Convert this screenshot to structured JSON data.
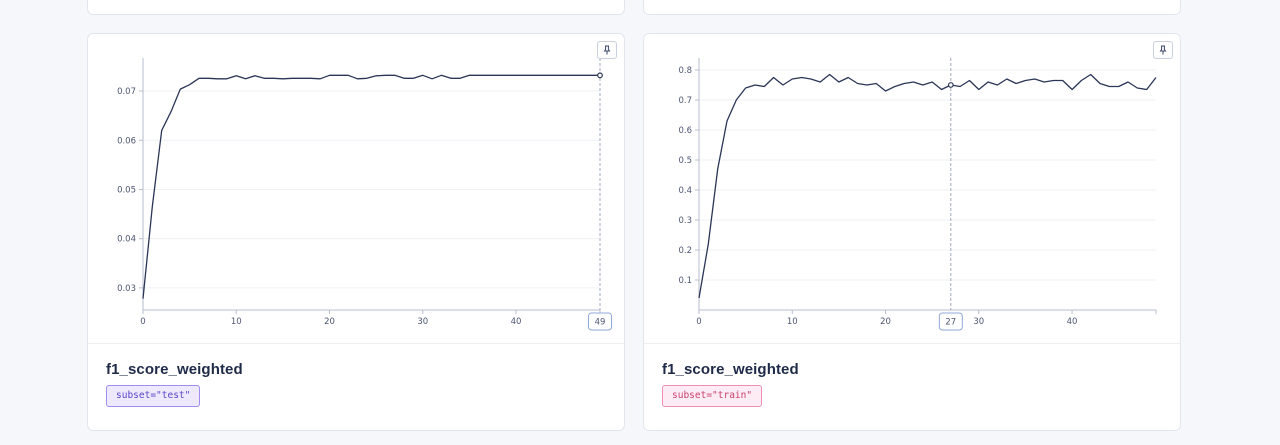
{
  "panels": [
    {
      "title": "f1_score_weighted",
      "tag": "subset=\"test\"",
      "tag_style": "test",
      "pin_icon": "pin-icon",
      "chart_data": {
        "type": "line",
        "x": [
          0,
          1,
          2,
          3,
          4,
          5,
          6,
          7,
          8,
          9,
          10,
          11,
          12,
          13,
          14,
          15,
          16,
          17,
          18,
          19,
          20,
          21,
          22,
          23,
          24,
          25,
          26,
          27,
          28,
          29,
          30,
          31,
          32,
          33,
          34,
          35,
          36,
          37,
          38,
          39,
          40,
          41,
          42,
          43,
          44,
          45,
          46,
          47,
          48,
          49
        ],
        "y": [
          0.0278,
          0.0465,
          0.062,
          0.0658,
          0.0704,
          0.0713,
          0.0726,
          0.0726,
          0.0725,
          0.0725,
          0.0731,
          0.0725,
          0.0731,
          0.0726,
          0.0726,
          0.0725,
          0.0726,
          0.0726,
          0.0726,
          0.0725,
          0.0732,
          0.0732,
          0.0732,
          0.0725,
          0.0726,
          0.0731,
          0.0732,
          0.0732,
          0.0726,
          0.0726,
          0.0732,
          0.0725,
          0.0732,
          0.0726,
          0.0726,
          0.0732,
          0.0732,
          0.0732,
          0.0732,
          0.0732,
          0.0732,
          0.0732,
          0.0732,
          0.0732,
          0.0732,
          0.0732,
          0.0732,
          0.0732,
          0.0732,
          0.0732
        ],
        "xlim": [
          0,
          49
        ],
        "ylim": [
          0.0255,
          0.0755
        ],
        "yticks": [
          "0.03",
          "0.04",
          "0.05",
          "0.06",
          "0.07"
        ],
        "ytick_values": [
          0.03,
          0.04,
          0.05,
          0.06,
          0.07
        ],
        "xticks": [
          "0",
          "10",
          "20",
          "30",
          "40"
        ],
        "xtick_values": [
          0,
          10,
          20,
          30,
          40
        ],
        "hover_x": 49,
        "hover_label": "49",
        "grid": true,
        "series_color": "#2b3556"
      }
    },
    {
      "title": "f1_score_weighted",
      "tag": "subset=\"train\"",
      "tag_style": "train",
      "pin_icon": "pin-icon",
      "chart_data": {
        "type": "line",
        "x": [
          0,
          1,
          2,
          3,
          4,
          5,
          6,
          7,
          8,
          9,
          10,
          11,
          12,
          13,
          14,
          15,
          16,
          17,
          18,
          19,
          20,
          21,
          22,
          23,
          24,
          25,
          26,
          27,
          28,
          29,
          30,
          31,
          32,
          33,
          34,
          35,
          36,
          37,
          38,
          39,
          40,
          41,
          42,
          43,
          44,
          45,
          46,
          47,
          48
        ],
        "y": [
          0.04,
          0.22,
          0.47,
          0.63,
          0.7,
          0.74,
          0.75,
          0.745,
          0.775,
          0.75,
          0.77,
          0.775,
          0.77,
          0.76,
          0.785,
          0.76,
          0.775,
          0.755,
          0.75,
          0.755,
          0.73,
          0.745,
          0.755,
          0.76,
          0.75,
          0.76,
          0.735,
          0.75,
          0.745,
          0.765,
          0.735,
          0.76,
          0.75,
          0.77,
          0.755,
          0.765,
          0.77,
          0.76,
          0.765,
          0.765,
          0.735,
          0.765,
          0.785,
          0.755,
          0.745,
          0.745,
          0.76,
          0.74,
          0.735
        ],
        "y_extra": 0.775,
        "xlim": [
          0,
          49
        ],
        "ylim": [
          0,
          0.82
        ],
        "yticks": [
          "0.1",
          "0.2",
          "0.3",
          "0.4",
          "0.5",
          "0.6",
          "0.7",
          "0.8"
        ],
        "ytick_values": [
          0.1,
          0.2,
          0.3,
          0.4,
          0.5,
          0.6,
          0.7,
          0.8
        ],
        "xticks": [
          "0",
          "10",
          "20",
          "30",
          "40"
        ],
        "xtick_values": [
          0,
          10,
          20,
          30,
          40
        ],
        "hover_x": 27,
        "hover_label": "27",
        "grid": true,
        "series_color": "#2b3556"
      }
    }
  ]
}
